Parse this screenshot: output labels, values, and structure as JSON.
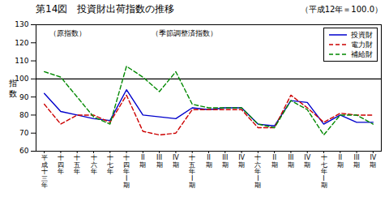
{
  "chart_data": {
    "type": "line",
    "title": "第14図　投資財出荷指数の推移",
    "subtitle": "（平成12年＝100.0）",
    "ylabel": "指\n数",
    "annotations": [
      "（原指数）",
      "（季節調整済指数）"
    ],
    "categories": [
      "平\n成\n十\n三\n年",
      "十\n四\n年",
      "十\n五\n年",
      "十\n六\n年",
      "十\n七\n年",
      "十\n四\n年\nI\n期",
      "II\n期",
      "III\n期",
      "IV\n期",
      "十\n五\n年\nI\n期",
      "II\n期",
      "III\n期",
      "IV\n期",
      "十\n六\n年\nI\n期",
      "II\n期",
      "III\n期",
      "IV\n期",
      "十\n七\n年\nI\n期",
      "II\n期",
      "III\n期",
      "IV\n期"
    ],
    "series": [
      {
        "name": "投資財",
        "color": "#0000cc",
        "line_style": "solid",
        "values": [
          92,
          82,
          80,
          78,
          77,
          94,
          80,
          79,
          78,
          84,
          83,
          84,
          84,
          75,
          74,
          88,
          87,
          75,
          80,
          76,
          76
        ]
      },
      {
        "name": "電力財",
        "color": "#cc0000",
        "line_style": "dashed",
        "values": [
          86,
          75,
          80,
          80,
          76,
          91,
          71,
          69,
          70,
          83,
          83,
          83,
          83,
          73,
          73,
          91,
          84,
          76,
          81,
          80,
          80
        ]
      },
      {
        "name": "補給財",
        "color": "#008800",
        "line_style": "dashed",
        "values": [
          104,
          101,
          90,
          79,
          75,
          107,
          101,
          93,
          104,
          86,
          84,
          84,
          84,
          75,
          73,
          88,
          83,
          69,
          80,
          80,
          75
        ]
      }
    ],
    "hline": 100,
    "ylim": [
      60,
      130
    ],
    "yticks": [
      60,
      70,
      80,
      90,
      100,
      110,
      120,
      130
    ],
    "grid": false,
    "legend": "upper right"
  }
}
